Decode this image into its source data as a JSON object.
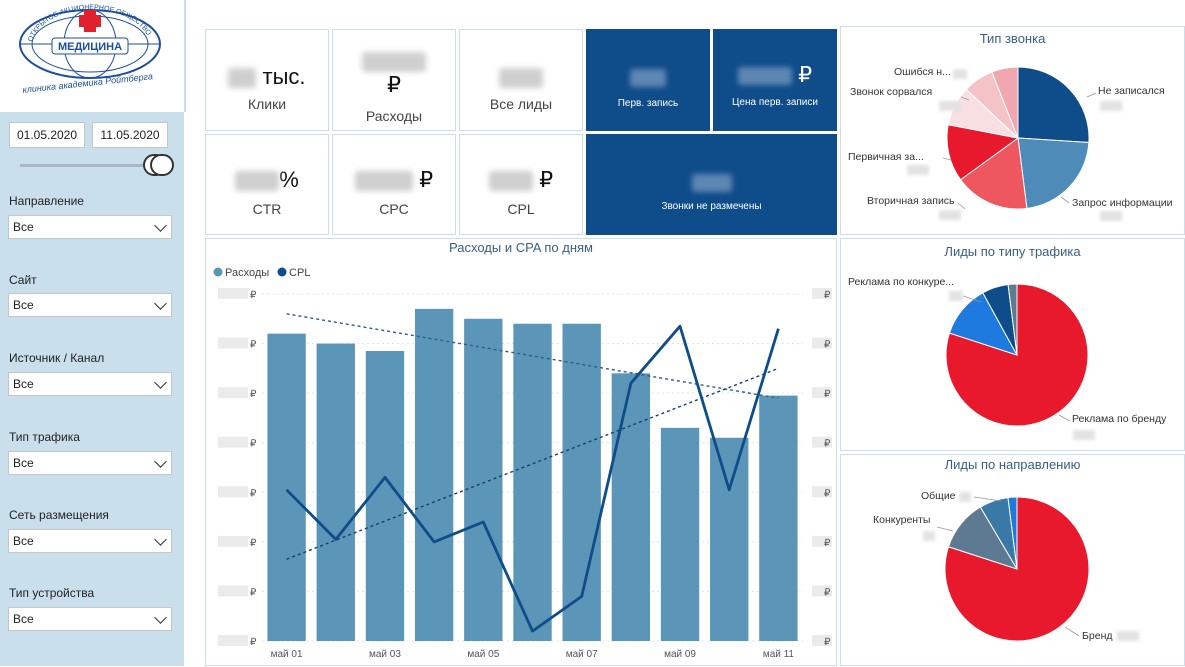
{
  "logo": {
    "arc_text": "ОТКРЫТОЕ АКЦИОНЕРНОЕ ОБЩЕСТВО",
    "name": "МЕДИЦИНА",
    "subtitle": "клиника академика Ройтберга"
  },
  "filters": {
    "date_from": "01.05.2020",
    "date_to": "11.05.2020",
    "items": [
      {
        "label": "Направление",
        "value": "Все"
      },
      {
        "label": "Сайт",
        "value": "Все"
      },
      {
        "label": "Источник / Канал",
        "value": "Все"
      },
      {
        "label": "Тип трафика",
        "value": "Все"
      },
      {
        "label": "Сеть размещения",
        "value": "Все"
      },
      {
        "label": "Тип устройства",
        "value": "Все"
      }
    ]
  },
  "kpis": {
    "clicks": {
      "unit": "тыс.",
      "label": "Клики"
    },
    "costs": {
      "unit": "₽",
      "label": "Расходы"
    },
    "leads": {
      "label": "Все лиды"
    },
    "first_record": {
      "label": "Перв. запись"
    },
    "first_record_price": {
      "unit": "₽",
      "label": "Цена перв. записи"
    },
    "ctr": {
      "unit": "%",
      "label": "CTR"
    },
    "cpc": {
      "unit": "₽",
      "label": "CPC"
    },
    "cpl": {
      "unit": "₽",
      "label": "CPL"
    },
    "unmarked_calls": {
      "label": "Звонки не размечены"
    }
  },
  "icons": {
    "dropdown": "chevron-down-icon",
    "slider": "range-slider-handle"
  },
  "colors": {
    "sidebar": "#c9dfec",
    "kpi_dark": "#0f4c8a",
    "bar": "#5b96b9",
    "line": "#0f4c8a",
    "pie_blue": "#0f4c8a",
    "pie_steel": "#4f8bb8",
    "pie_red": "#e8192c",
    "pie_red_light": "#ee5760",
    "pie_pink": "#f4c3c8",
    "pie_gray": "#5e7a93",
    "pie_bright_blue": "#1f7ae0"
  },
  "chart_data": [
    {
      "type": "bar",
      "title": "Расходы и CPA по дням",
      "legend": [
        "Расходы",
        "CPL"
      ],
      "legend_position": "top-left",
      "x": [
        "май 01",
        "май 02",
        "май 03",
        "май 04",
        "май 05",
        "май 06",
        "май 07",
        "май 08",
        "май 09",
        "май 10",
        "май 11"
      ],
      "x_tick_labels": [
        "май 01",
        "май 03",
        "май 05",
        "май 07",
        "май 09",
        "май 11"
      ],
      "series": [
        {
          "name": "Расходы",
          "type": "bar",
          "values": [
            6.2,
            6.0,
            5.85,
            6.7,
            6.5,
            6.4,
            6.4,
            5.4,
            4.3,
            4.1,
            4.95
          ]
        },
        {
          "name": "CPL",
          "type": "line",
          "values": [
            3.05,
            2.05,
            3.3,
            2.0,
            2.4,
            0.2,
            0.9,
            5.2,
            6.35,
            3.05,
            6.3
          ]
        }
      ],
      "trend_lines": {
        "Расходы": [
          6.6,
          4.9
        ],
        "CPL": [
          1.65,
          5.5
        ]
      },
      "y_ticks_left": [
        "₽",
        "₽",
        "₽",
        "₽",
        "₽",
        "₽",
        "₽",
        "₽"
      ],
      "y_ticks_right": [
        "₽",
        "₽",
        "₽",
        "₽",
        "₽",
        "₽",
        "₽",
        "₽"
      ],
      "ylim": [
        0,
        7
      ],
      "grid": true
    },
    {
      "type": "pie",
      "title": "Тип звонка",
      "slices": [
        {
          "label": "Не записался",
          "value": 26
        },
        {
          "label": "Запрос информации",
          "value": 22
        },
        {
          "label": "Вторичная запись",
          "value": 17
        },
        {
          "label": "Первичная за...",
          "value": 13
        },
        {
          "label": "Звонок сорвался",
          "value": 9
        },
        {
          "label": "Ошибся н...",
          "value": 7
        },
        {
          "label": "",
          "value": 6
        }
      ]
    },
    {
      "type": "pie",
      "title": "Лиды по типу трафика",
      "slices": [
        {
          "label": "Реклама по бренду",
          "value": 80
        },
        {
          "label": "Реклама по конкуре...",
          "value": 12
        },
        {
          "label": "",
          "value": 6
        },
        {
          "label": "",
          "value": 2
        }
      ]
    },
    {
      "type": "pie",
      "title": "Лиды по направлению",
      "slices": [
        {
          "label": "Бренд",
          "value": 80
        },
        {
          "label": "Конкуренты",
          "value": 11.5
        },
        {
          "label": "",
          "value": 6.5
        },
        {
          "label": "Общие",
          "value": 2
        }
      ]
    }
  ]
}
